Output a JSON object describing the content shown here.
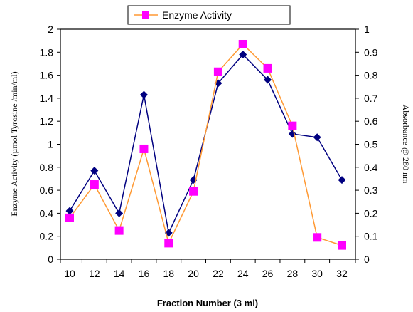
{
  "chart_data": {
    "type": "line",
    "x": [
      10,
      12,
      14,
      16,
      18,
      20,
      22,
      24,
      26,
      28,
      30,
      32
    ],
    "xlabel": "Fraction Number (3 ml)",
    "ylabel": "Enzyme Activity (µmol Tyrosine /min/ml)",
    "y2label": "Absorbance @ 280 nm",
    "ylim": [
      0,
      2
    ],
    "y2lim": [
      0,
      1
    ],
    "x_ticks": [
      "10",
      "12",
      "14",
      "16",
      "18",
      "20",
      "22",
      "24",
      "26",
      "28",
      "30",
      "32"
    ],
    "y_ticks": [
      "0",
      "0.2",
      "0.4",
      "0.6",
      "0.8",
      "1",
      "1.2",
      "1.4",
      "1.6",
      "1.8",
      "2"
    ],
    "y2_ticks": [
      "0",
      "0.1",
      "0.2",
      "0.3",
      "0.4",
      "0.5",
      "0.6",
      "0.7",
      "0.8",
      "0.9",
      "1"
    ],
    "grid": false,
    "legend": {
      "placement": "top",
      "entries": [
        "Enzyme Activity"
      ]
    },
    "series": [
      {
        "name": "Enzyme Activity",
        "axis": "left",
        "color": "#ff9933",
        "marker": "square",
        "marker_color": "#ff00ff",
        "values": [
          0.36,
          0.65,
          0.25,
          0.96,
          0.14,
          0.59,
          1.63,
          1.87,
          1.66,
          1.16,
          0.19,
          0.12
        ]
      },
      {
        "axis": "right",
        "color": "#000080",
        "marker": "diamond",
        "marker_color": "#000080",
        "values": [
          0.21,
          0.385,
          0.2,
          0.715,
          0.115,
          0.345,
          0.765,
          0.89,
          0.78,
          0.545,
          0.53,
          0.345
        ]
      }
    ]
  }
}
